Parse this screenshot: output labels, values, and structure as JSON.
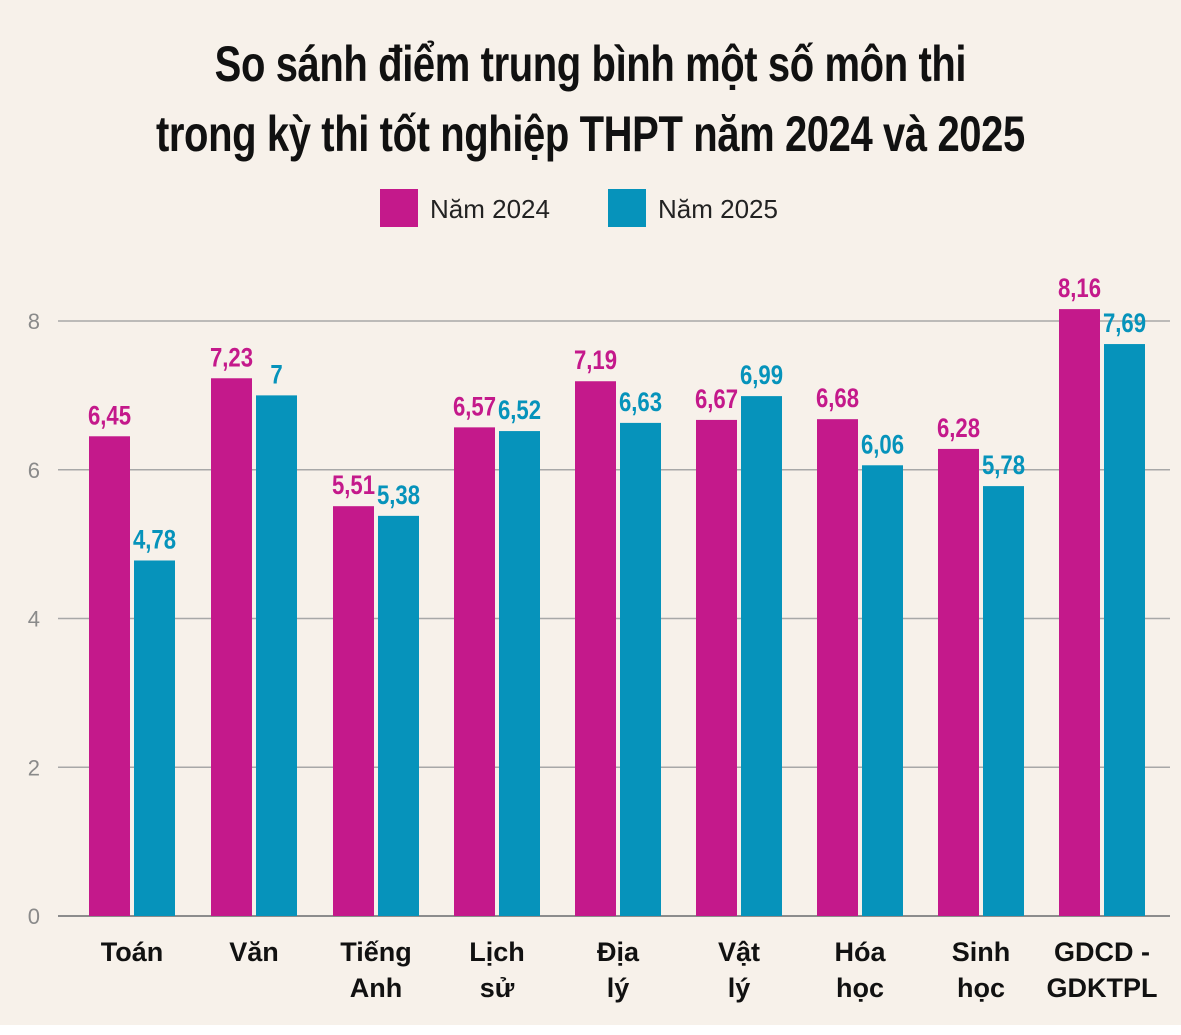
{
  "chart_data": {
    "type": "bar",
    "title_lines": [
      "So sánh điểm trung bình một số môn thi",
      "trong kỳ thi tốt nghiệp THPT năm 2024 và 2025"
    ],
    "categories": [
      [
        "Toán"
      ],
      [
        "Văn"
      ],
      [
        "Tiếng",
        "Anh"
      ],
      [
        "Lịch",
        "sử"
      ],
      [
        "Địa",
        "lý"
      ],
      [
        "Vật",
        "lý"
      ],
      [
        "Hóa",
        "học"
      ],
      [
        "Sinh",
        "học"
      ],
      [
        "GDCD -",
        "GDKTPL"
      ]
    ],
    "series": [
      {
        "name": "Năm 2024",
        "color": "#c4198b",
        "values": [
          6.45,
          7.23,
          5.51,
          6.57,
          7.19,
          6.67,
          6.68,
          6.28,
          8.16
        ],
        "labels": [
          "6,45",
          "7,23",
          "5,51",
          "6,57",
          "7,19",
          "6,67",
          "6,68",
          "6,28",
          "8,16"
        ]
      },
      {
        "name": "Năm 2025",
        "color": "#0693bb",
        "values": [
          4.78,
          7,
          5.38,
          6.52,
          6.63,
          6.99,
          6.06,
          5.78,
          7.69
        ],
        "labels": [
          "4,78",
          "7",
          "5,38",
          "6,52",
          "6,63",
          "6,99",
          "6,06",
          "5,78",
          "7,69"
        ]
      }
    ],
    "yticks": [
      "0",
      "2",
      "4",
      "6",
      "8"
    ],
    "ylim": [
      0,
      8
    ],
    "grid": true,
    "legend": "top-center",
    "xlabel": "",
    "ylabel": ""
  }
}
